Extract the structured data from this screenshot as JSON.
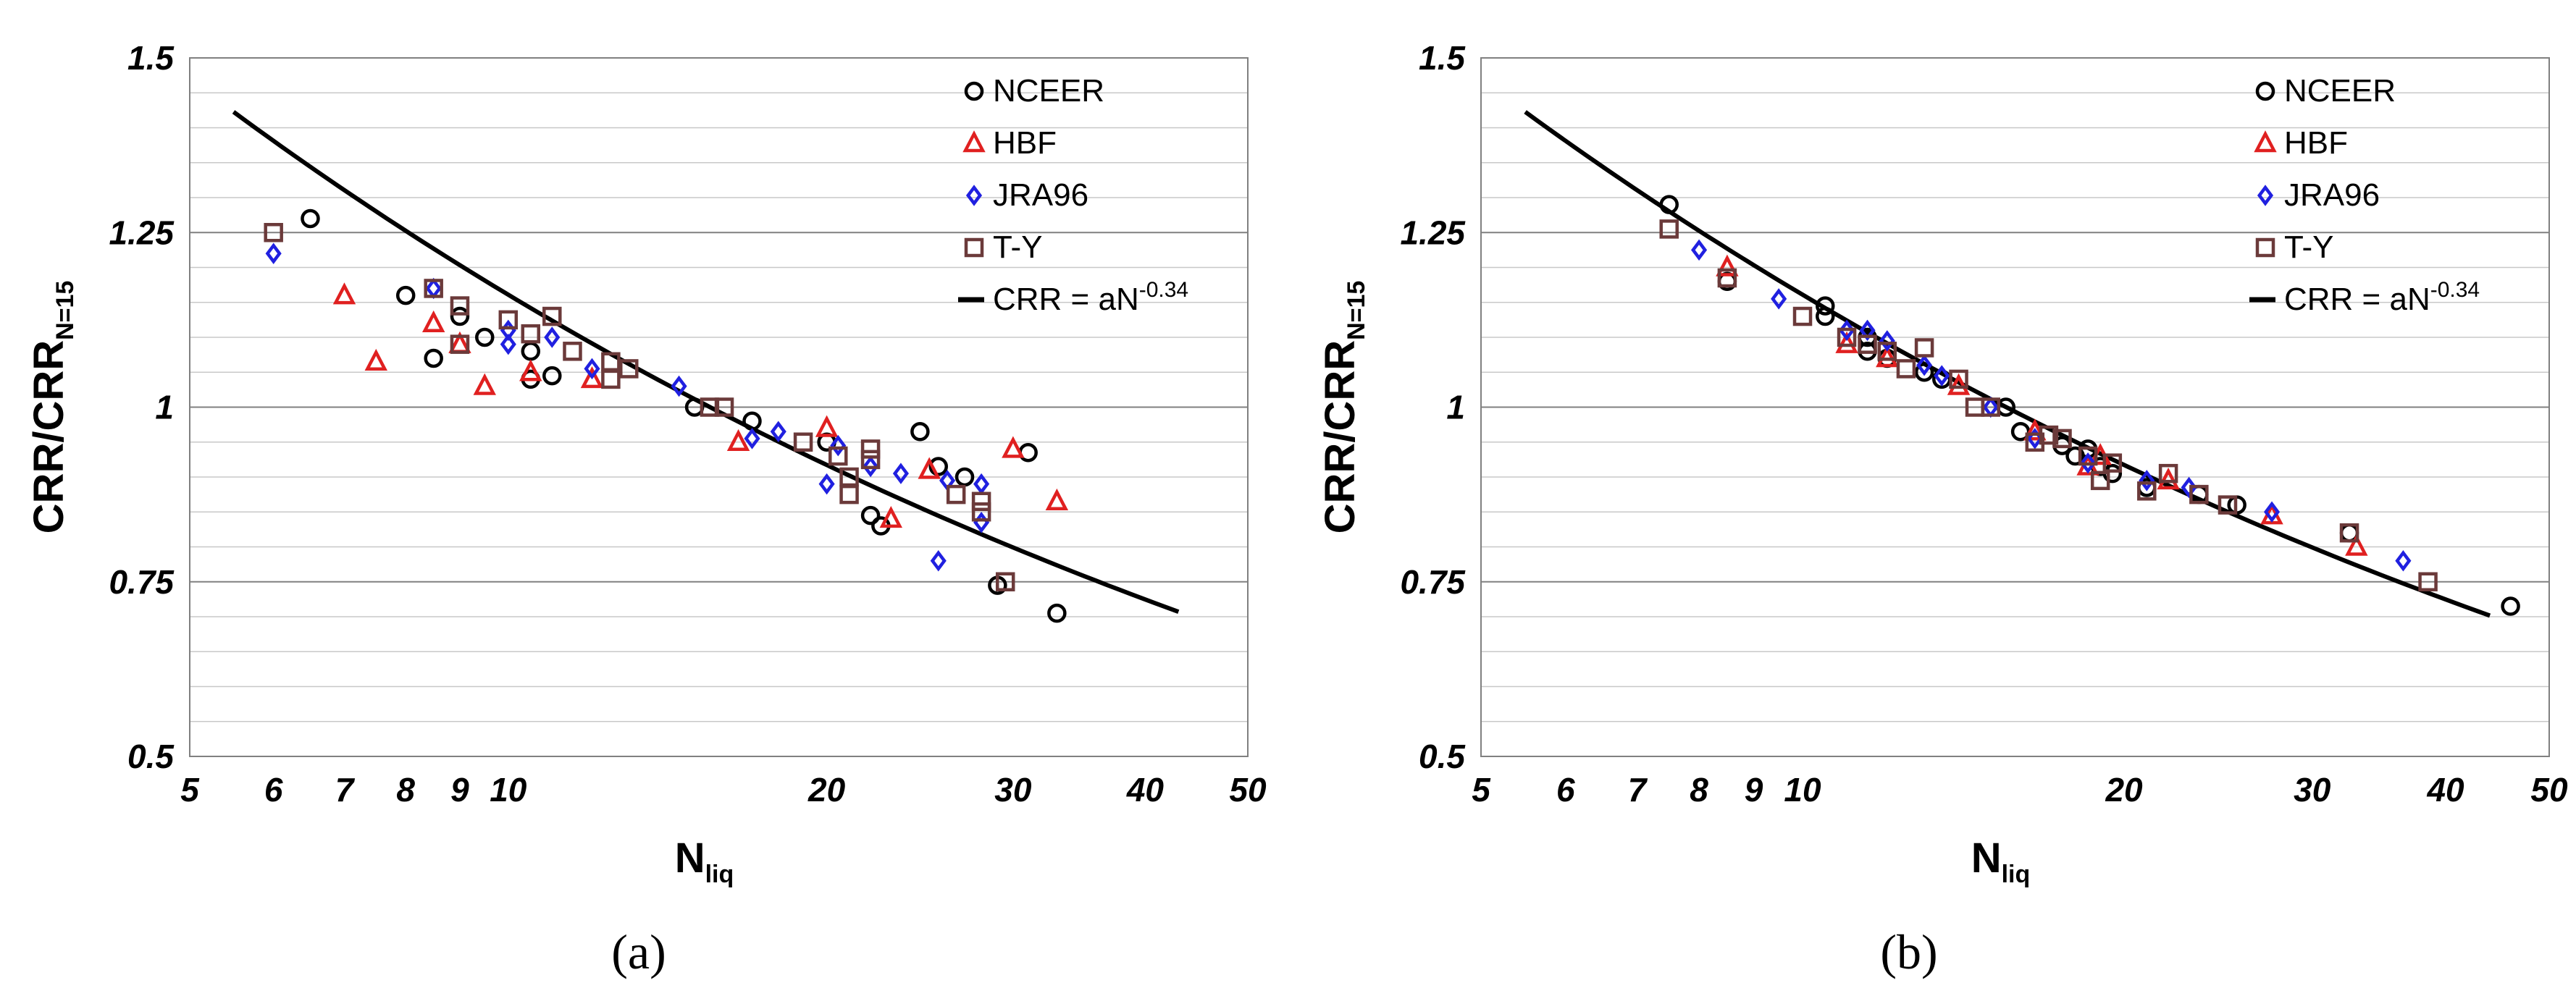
{
  "chart_data": [
    {
      "type": "scatter",
      "panel_label": "(a)",
      "xscale": "log",
      "xlim": [
        5,
        50
      ],
      "ylim": [
        0.5,
        1.5
      ],
      "xticks": [
        "5",
        "6",
        "7",
        "8",
        "9",
        "10",
        "20",
        "30",
        "40",
        "50"
      ],
      "yticks": [
        "0.5",
        "0.75",
        "1",
        "1.25",
        "1.5"
      ],
      "xlabel": {
        "main": "N",
        "sub": "liq"
      },
      "ylabel": {
        "main": "CRR/CRR",
        "sub": "N=15"
      },
      "legend_position": "top-right",
      "series": [
        {
          "name": "NCEER",
          "marker": "circle",
          "color": "#000000",
          "points": [
            [
              6.5,
              1.27
            ],
            [
              8,
              1.16
            ],
            [
              8.5,
              1.07
            ],
            [
              9,
              1.13
            ],
            [
              9.5,
              1.1
            ],
            [
              10.5,
              1.08
            ],
            [
              10.5,
              1.04
            ],
            [
              11,
              1.045
            ],
            [
              15,
              1.0
            ],
            [
              17,
              0.98
            ],
            [
              20,
              0.95
            ],
            [
              22,
              0.845
            ],
            [
              22.5,
              0.83
            ],
            [
              24.5,
              0.965
            ],
            [
              25.5,
              0.915
            ],
            [
              27,
              0.9
            ],
            [
              29,
              0.745
            ],
            [
              31,
              0.935
            ],
            [
              33,
              0.705
            ]
          ]
        },
        {
          "name": "HBF",
          "marker": "triangle",
          "color": "#e02020",
          "points": [
            [
              7,
              1.16
            ],
            [
              7.5,
              1.065
            ],
            [
              8.5,
              1.12
            ],
            [
              9.5,
              1.03
            ],
            [
              9,
              1.09
            ],
            [
              10.5,
              1.05
            ],
            [
              12,
              1.04
            ],
            [
              16.5,
              0.95
            ],
            [
              20,
              0.97
            ],
            [
              23,
              0.84
            ],
            [
              25,
              0.91
            ],
            [
              30,
              0.94
            ],
            [
              33,
              0.865
            ]
          ]
        },
        {
          "name": "JRA96",
          "marker": "diamond",
          "color": "#2020e0",
          "points": [
            [
              6,
              1.22
            ],
            [
              8.5,
              1.17
            ],
            [
              10,
              1.09
            ],
            [
              10,
              1.11
            ],
            [
              11,
              1.1
            ],
            [
              12,
              1.055
            ],
            [
              14.5,
              1.03
            ],
            [
              17,
              0.955
            ],
            [
              18,
              0.965
            ],
            [
              20,
              0.89
            ],
            [
              20.5,
              0.945
            ],
            [
              22,
              0.915
            ],
            [
              23.5,
              0.905
            ],
            [
              25.5,
              0.78
            ],
            [
              26,
              0.895
            ],
            [
              28,
              0.89
            ],
            [
              28,
              0.835
            ]
          ]
        },
        {
          "name": "T-Y",
          "marker": "square",
          "color": "#6b3a3a",
          "points": [
            [
              6,
              1.25
            ],
            [
              8.5,
              1.17
            ],
            [
              9,
              1.145
            ],
            [
              9,
              1.09
            ],
            [
              10,
              1.125
            ],
            [
              10.5,
              1.105
            ],
            [
              11,
              1.13
            ],
            [
              11.5,
              1.08
            ],
            [
              12.5,
              1.065
            ],
            [
              12.5,
              1.04
            ],
            [
              13,
              1.055
            ],
            [
              15.5,
              1.0
            ],
            [
              16,
              1.0
            ],
            [
              19,
              0.95
            ],
            [
              20.5,
              0.93
            ],
            [
              21,
              0.9
            ],
            [
              21,
              0.875
            ],
            [
              22,
              0.94
            ],
            [
              22,
              0.925
            ],
            [
              26.5,
              0.875
            ],
            [
              28,
              0.865
            ],
            [
              28,
              0.85
            ],
            [
              29.5,
              0.75
            ]
          ]
        }
      ],
      "fit": {
        "label": "CRR = aN",
        "exponent": "-0.34",
        "a": 2.54,
        "b": -0.34,
        "x_range": [
          5.5,
          43
        ]
      }
    },
    {
      "type": "scatter",
      "panel_label": "(b)",
      "xscale": "log",
      "xlim": [
        5,
        50
      ],
      "ylim": [
        0.5,
        1.5
      ],
      "xticks": [
        "5",
        "6",
        "7",
        "8",
        "9",
        "10",
        "20",
        "30",
        "40",
        "50"
      ],
      "yticks": [
        "0.5",
        "0.75",
        "1",
        "1.25",
        "1.5"
      ],
      "xlabel": {
        "main": "N",
        "sub": "liq"
      },
      "ylabel": {
        "main": "CRR/CRR",
        "sub": "N=15"
      },
      "legend_position": "top-right",
      "series": [
        {
          "name": "NCEER",
          "marker": "circle",
          "color": "#000000",
          "points": [
            [
              7.5,
              1.29
            ],
            [
              8.5,
              1.18
            ],
            [
              10.5,
              1.145
            ],
            [
              10.5,
              1.13
            ],
            [
              11.5,
              1.1
            ],
            [
              11.5,
              1.08
            ],
            [
              12,
              1.07
            ],
            [
              13,
              1.05
            ],
            [
              13.5,
              1.04
            ],
            [
              15.5,
              1.0
            ],
            [
              16,
              0.965
            ],
            [
              17.5,
              0.945
            ],
            [
              18,
              0.93
            ],
            [
              18.5,
              0.94
            ],
            [
              19,
              0.915
            ],
            [
              19.5,
              0.905
            ],
            [
              21,
              0.885
            ],
            [
              23.5,
              0.875
            ],
            [
              25.5,
              0.86
            ],
            [
              32.5,
              0.82
            ],
            [
              46,
              0.715
            ]
          ]
        },
        {
          "name": "HBF",
          "marker": "triangle",
          "color": "#e02020",
          "points": [
            [
              8.5,
              1.2
            ],
            [
              11,
              1.09
            ],
            [
              12,
              1.07
            ],
            [
              14,
              1.03
            ],
            [
              16.5,
              0.965
            ],
            [
              18.5,
              0.915
            ],
            [
              19,
              0.93
            ],
            [
              22,
              0.895
            ],
            [
              27.5,
              0.845
            ],
            [
              33,
              0.8
            ]
          ]
        },
        {
          "name": "JRA96",
          "marker": "diamond",
          "color": "#2020e0",
          "points": [
            [
              8,
              1.225
            ],
            [
              9.5,
              1.155
            ],
            [
              11,
              1.11
            ],
            [
              11.5,
              1.11
            ],
            [
              12,
              1.095
            ],
            [
              13,
              1.06
            ],
            [
              13.5,
              1.045
            ],
            [
              15,
              1.0
            ],
            [
              16.5,
              0.955
            ],
            [
              18.5,
              0.92
            ],
            [
              21,
              0.895
            ],
            [
              23,
              0.885
            ],
            [
              27.5,
              0.85
            ],
            [
              36.5,
              0.78
            ]
          ]
        },
        {
          "name": "T-Y",
          "marker": "square",
          "color": "#6b3a3a",
          "points": [
            [
              7.5,
              1.255
            ],
            [
              8.5,
              1.185
            ],
            [
              10,
              1.13
            ],
            [
              11,
              1.1
            ],
            [
              11.5,
              1.09
            ],
            [
              12,
              1.08
            ],
            [
              12.5,
              1.055
            ],
            [
              13,
              1.085
            ],
            [
              14,
              1.04
            ],
            [
              14.5,
              1.0
            ],
            [
              15,
              1.0
            ],
            [
              16.5,
              0.95
            ],
            [
              17,
              0.96
            ],
            [
              17.5,
              0.955
            ],
            [
              18.5,
              0.93
            ],
            [
              19,
              0.895
            ],
            [
              19.5,
              0.92
            ],
            [
              21,
              0.88
            ],
            [
              22,
              0.905
            ],
            [
              23.5,
              0.875
            ],
            [
              25,
              0.86
            ],
            [
              32.5,
              0.82
            ],
            [
              38.5,
              0.75
            ]
          ]
        }
      ],
      "fit": {
        "label": "CRR = aN",
        "exponent": "-0.34",
        "a": 2.54,
        "b": -0.34,
        "x_range": [
          5.5,
          44
        ]
      }
    }
  ]
}
